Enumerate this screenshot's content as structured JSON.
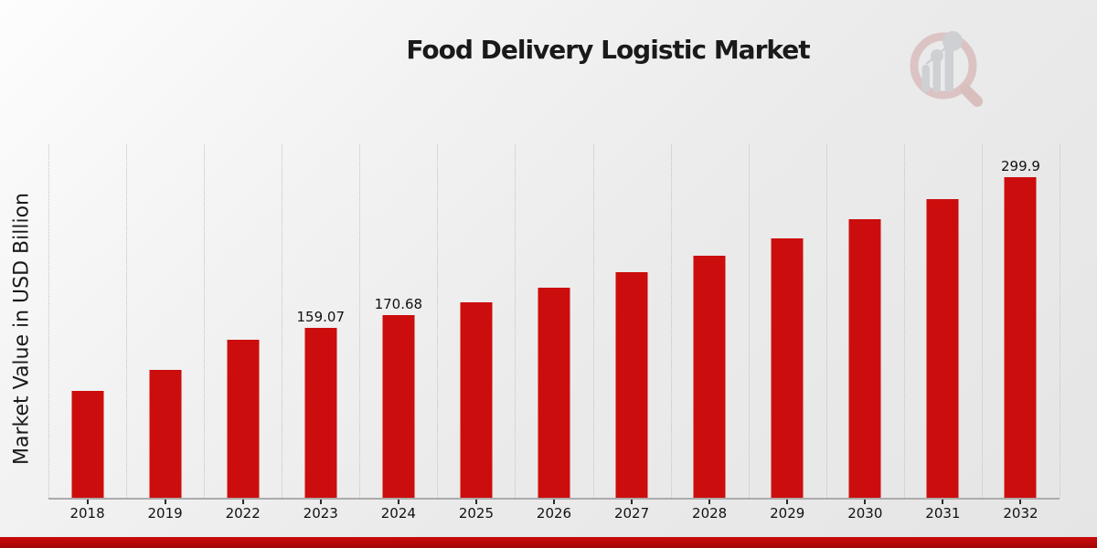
{
  "title": "Food Delivery Logistic Market",
  "y_axis_label": "Market Value in USD Billion",
  "logo": {
    "icon": "magnifier-bar-chart-logo"
  },
  "colors": {
    "bar": "#cc0d0d",
    "bottom_strip": "#b20707",
    "gridline": "#c3c3c3",
    "axis_line": "#ababab",
    "text": "#1a1a1a",
    "logo_ring": "#c98f8f",
    "logo_gray": "#a9adb4"
  },
  "chart_data": {
    "type": "bar",
    "title": "Food Delivery Logistic Market",
    "xlabel": "",
    "ylabel": "Market Value in USD Billion",
    "categories": [
      "2018",
      "2019",
      "2022",
      "2023",
      "2024",
      "2025",
      "2026",
      "2027",
      "2028",
      "2029",
      "2030",
      "2031",
      "2032"
    ],
    "values": [
      100,
      120,
      148.3,
      159.07,
      170.68,
      183.1,
      196.5,
      210.9,
      226.3,
      242.8,
      260.5,
      279.5,
      299.9
    ],
    "labels": [
      "",
      "",
      "",
      "159.07",
      "170.68",
      "",
      "",
      "",
      "",
      "",
      "",
      "",
      "299.9"
    ],
    "ylim": [
      0,
      331
    ],
    "grid": "vertical-dotted-category-boundaries",
    "legend": "none",
    "bar_color": "#cc0d0d",
    "value_unit": "USD Billion"
  }
}
